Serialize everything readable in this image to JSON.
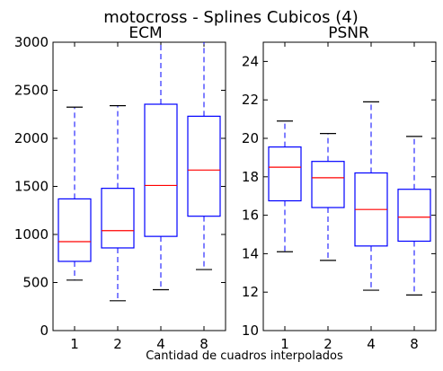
{
  "suptitle": "motocross - Splines Cubicos (4)",
  "xlabel": "Cantidad de cuadros interpolados",
  "colors": {
    "box": "#0000ff",
    "median": "#ff0000",
    "whisker": "#0000ff",
    "cap": "#000000"
  },
  "chart_data": [
    {
      "type": "box",
      "title": "ECM",
      "categories": [
        "1",
        "2",
        "4",
        "8"
      ],
      "ylim": [
        0,
        3000
      ],
      "yticks": [
        0,
        500,
        1000,
        1500,
        2000,
        2500,
        3000
      ],
      "series": [
        {
          "category": "1",
          "low": 525,
          "q1": 720,
          "median": 925,
          "q3": 1370,
          "high": 2325
        },
        {
          "category": "2",
          "low": 310,
          "q1": 860,
          "median": 1040,
          "q3": 1480,
          "high": 2340
        },
        {
          "category": "4",
          "low": 425,
          "q1": 980,
          "median": 1510,
          "q3": 2355,
          "high": 3000
        },
        {
          "category": "8",
          "low": 635,
          "q1": 1190,
          "median": 1670,
          "q3": 2230,
          "high": 3000
        }
      ]
    },
    {
      "type": "box",
      "title": "PSNR",
      "categories": [
        "1",
        "2",
        "4",
        "8"
      ],
      "ylim": [
        10,
        25
      ],
      "yticks": [
        10,
        12,
        14,
        16,
        18,
        20,
        22,
        24
      ],
      "series": [
        {
          "category": "1",
          "low": 14.1,
          "q1": 16.75,
          "median": 18.5,
          "q3": 19.55,
          "high": 20.9
        },
        {
          "category": "2",
          "low": 13.65,
          "q1": 16.4,
          "median": 17.95,
          "q3": 18.8,
          "high": 20.25
        },
        {
          "category": "4",
          "low": 12.1,
          "q1": 14.4,
          "median": 16.3,
          "q3": 18.2,
          "high": 21.9
        },
        {
          "category": "8",
          "low": 11.85,
          "q1": 14.65,
          "median": 15.9,
          "q3": 17.35,
          "high": 20.1
        }
      ]
    }
  ]
}
